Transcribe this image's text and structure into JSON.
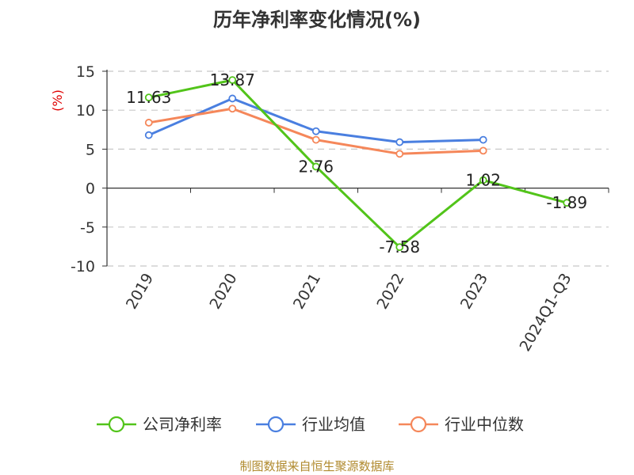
{
  "chart_data": {
    "type": "line",
    "title": "历年净利率变化情况(%)",
    "unit": "(%)",
    "categories": [
      "2019",
      "2020",
      "2021",
      "2022",
      "2023",
      "2024Q1-Q3"
    ],
    "ylim": [
      -10,
      15
    ],
    "yticks": [
      15,
      10,
      5,
      0,
      -5,
      -10
    ],
    "grid": true,
    "legend_position": "bottom",
    "series": [
      {
        "name": "公司净利率",
        "color": "#52c41a",
        "values": [
          11.63,
          13.87,
          2.76,
          -7.58,
          1.02,
          -1.89
        ],
        "labels": [
          "11.63",
          "13.87",
          "2.76",
          "-7.58",
          "1.02",
          "-1.89"
        ]
      },
      {
        "name": "行业均值",
        "color": "#4a7fe0",
        "values": [
          6.8,
          11.5,
          7.3,
          5.9,
          6.2,
          null
        ]
      },
      {
        "name": "行业中位数",
        "color": "#f5875a",
        "values": [
          8.4,
          10.2,
          6.2,
          4.4,
          4.8,
          null
        ]
      }
    ]
  },
  "source": "制图数据来自恒生聚源数据库"
}
